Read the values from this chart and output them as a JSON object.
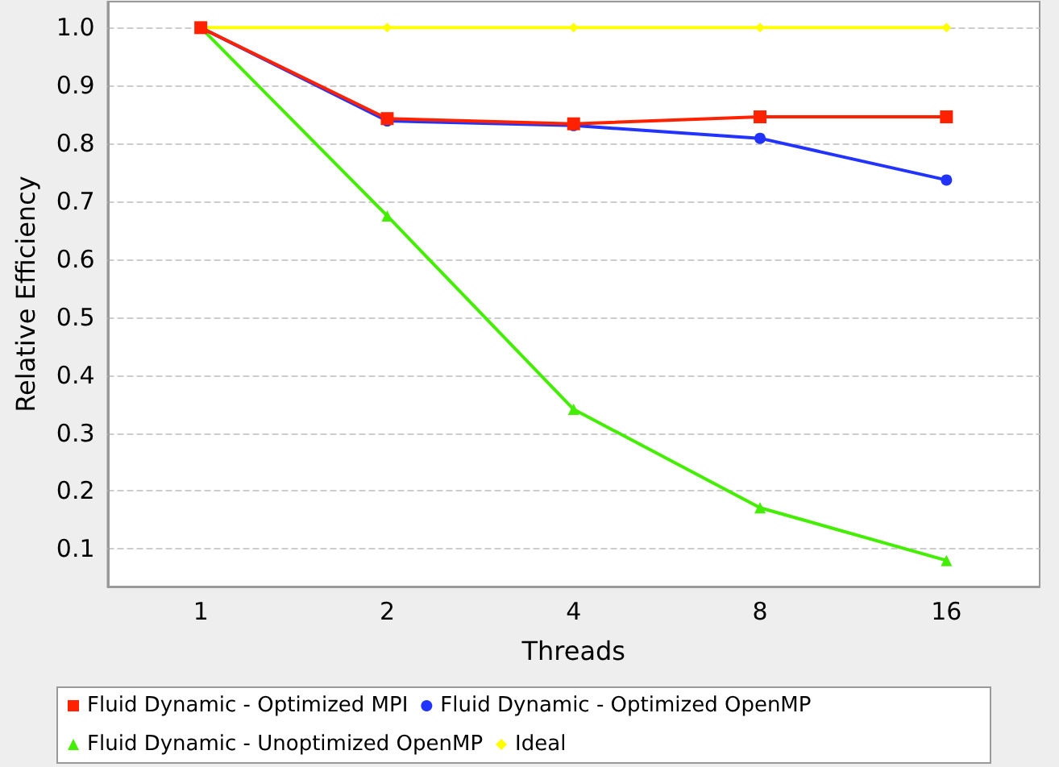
{
  "chart_data": {
    "type": "line",
    "xlabel": "Threads",
    "ylabel": "Relative Efficiency",
    "categories": [
      "1",
      "2",
      "4",
      "8",
      "16"
    ],
    "series": [
      {
        "name": "Fluid Dynamic - Optimized MPI",
        "color": "#ff2200",
        "marker": "square",
        "values": [
          1.0,
          0.843,
          0.834,
          0.846,
          0.846
        ]
      },
      {
        "name": "Fluid Dynamic - Optimized OpenMP",
        "color": "#2233ff",
        "marker": "circle",
        "values": [
          1.0,
          0.839,
          0.831,
          0.809,
          0.737
        ]
      },
      {
        "name": "Fluid Dynamic - Unoptimized OpenMP",
        "color": "#44ee00",
        "marker": "triangle",
        "values": [
          1.0,
          0.675,
          0.341,
          0.171,
          0.08
        ]
      },
      {
        "name": "Ideal",
        "color": "#ffff00",
        "marker": "diamond",
        "values": [
          1.0,
          1.0,
          1.0,
          1.0,
          1.0
        ]
      }
    ],
    "ylim": [
      0.035,
      1.045
    ],
    "yticks": [
      0.1,
      0.2,
      0.3,
      0.4,
      0.5,
      0.6,
      0.7,
      0.8,
      0.9,
      {
        "value": 1.0,
        "label": "1.0"
      }
    ],
    "grid": "y",
    "legend": "bottom"
  }
}
